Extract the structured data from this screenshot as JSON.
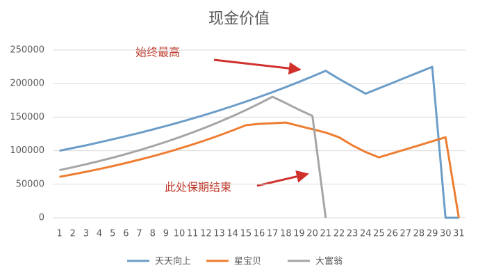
{
  "chart_data": {
    "type": "line",
    "title": "现金价值",
    "categories": [
      "1",
      "2",
      "3",
      "4",
      "5",
      "6",
      "7",
      "8",
      "9",
      "10",
      "11",
      "12",
      "13",
      "14",
      "15",
      "16",
      "17",
      "18",
      "19",
      "20",
      "21",
      "22",
      "23",
      "24",
      "25",
      "26",
      "27",
      "28",
      "29",
      "30",
      "31"
    ],
    "series": [
      {
        "name": "天天向上",
        "color": "#6b9dc8",
        "values": [
          100000,
          104000,
          108000,
          112500,
          117000,
          121700,
          126500,
          131600,
          136900,
          142300,
          148000,
          153900,
          160100,
          166500,
          173200,
          180100,
          187300,
          194800,
          202600,
          210700,
          219100,
          207000,
          196000,
          185000,
          193000,
          201000,
          209000,
          217000,
          225000,
          0,
          0
        ]
      },
      {
        "name": "星宝贝",
        "color": "#ed7d31",
        "values": [
          61000,
          64700,
          68600,
          72700,
          77000,
          81700,
          86600,
          91700,
          97200,
          103100,
          109300,
          115800,
          122800,
          130200,
          138000,
          140000,
          141000,
          142000,
          137000,
          132000,
          127000,
          120000,
          108000,
          98000,
          90000,
          96000,
          102000,
          108000,
          114000,
          120000,
          0
        ]
      },
      {
        "name": "大富翁",
        "color": "#a5a5a5",
        "values": [
          71000,
          75300,
          79800,
          84600,
          89600,
          95000,
          100700,
          106800,
          113200,
          120000,
          127200,
          134800,
          142900,
          151500,
          160500,
          170200,
          180400,
          171000,
          161000,
          152000,
          0,
          null,
          null,
          null,
          null,
          null,
          null,
          null,
          null,
          null,
          null
        ]
      }
    ],
    "ylim": [
      0,
      250000
    ],
    "yticks": [
      0,
      50000,
      100000,
      150000,
      200000,
      250000
    ],
    "grid": true,
    "legend": "bottom",
    "annotations": [
      "始终最高",
      "此处保期结束"
    ]
  }
}
